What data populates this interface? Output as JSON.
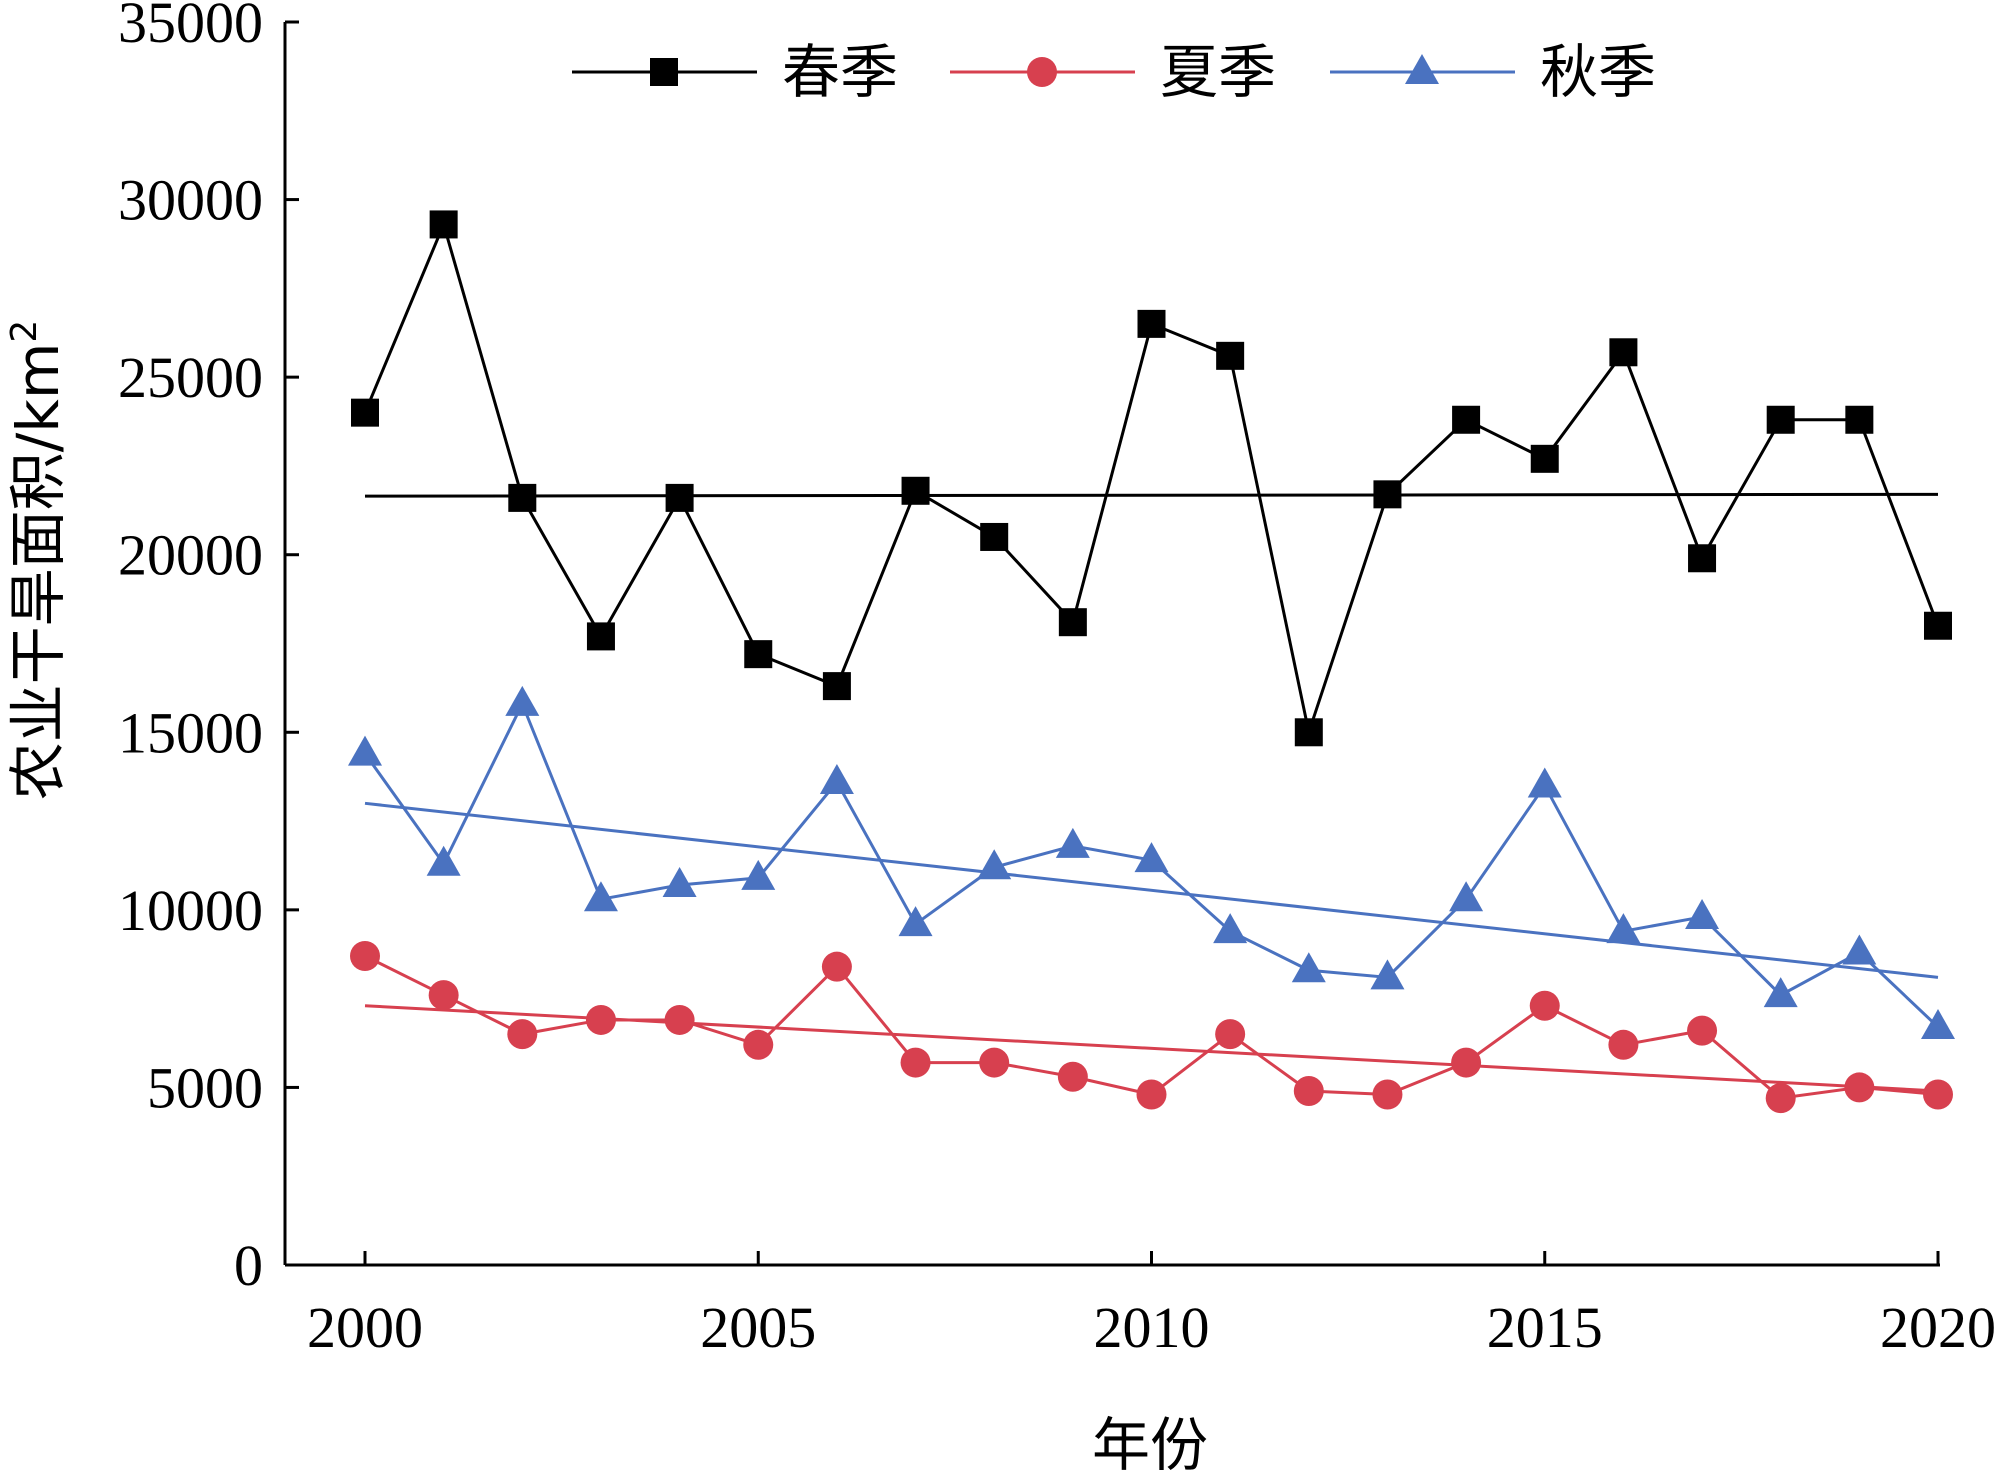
{
  "chart_data": {
    "type": "line",
    "xlabel": "年份",
    "ylabel": "农业干旱面积/km",
    "ylabel_sup": "2",
    "xlim": [
      2000,
      2020
    ],
    "ylim": [
      0,
      35000
    ],
    "x_ticks": [
      2000,
      2005,
      2010,
      2015,
      2020
    ],
    "y_ticks": [
      0,
      5000,
      10000,
      15000,
      20000,
      25000,
      30000,
      35000
    ],
    "legend_position": "top-center",
    "x": [
      2000,
      2001,
      2002,
      2003,
      2004,
      2005,
      2006,
      2007,
      2008,
      2009,
      2010,
      2011,
      2012,
      2013,
      2014,
      2015,
      2016,
      2017,
      2018,
      2019,
      2020
    ],
    "series": [
      {
        "name": "春季",
        "color": "#000000",
        "marker": "square",
        "values": [
          24000,
          29300,
          21600,
          17700,
          21600,
          17200,
          16300,
          21800,
          20500,
          18100,
          26500,
          25600,
          15000,
          21700,
          23800,
          22700,
          25700,
          19900,
          23800,
          23800,
          18000
        ],
        "trend": [
          21650,
          21700
        ]
      },
      {
        "name": "夏季",
        "color": "#d7404f",
        "marker": "circle",
        "values": [
          8700,
          7600,
          6500,
          6900,
          6900,
          6200,
          8400,
          5700,
          5700,
          5300,
          4800,
          6500,
          4900,
          4800,
          5700,
          7300,
          6200,
          6600,
          4700,
          5000,
          4800
        ],
        "trend": [
          7300,
          4900
        ]
      },
      {
        "name": "秋季",
        "color": "#4a72c0",
        "marker": "triangle",
        "values": [
          14400,
          11300,
          15800,
          10300,
          10700,
          10900,
          13600,
          9600,
          11200,
          11800,
          11400,
          9400,
          8300,
          8100,
          10300,
          13500,
          9400,
          9800,
          7600,
          8800,
          6700
        ],
        "trend": [
          13000,
          8100
        ]
      }
    ]
  }
}
